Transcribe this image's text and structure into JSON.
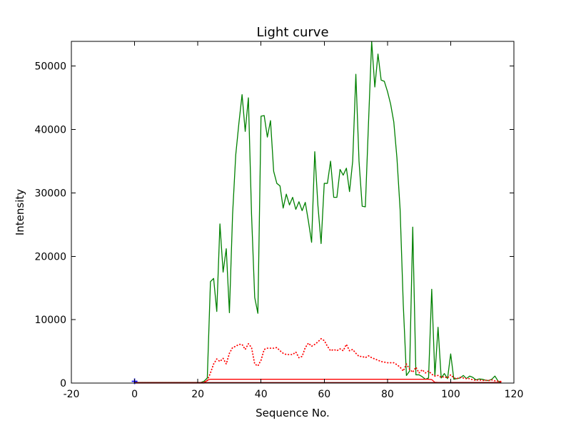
{
  "chart_data": {
    "type": "line",
    "title": "Light curve",
    "xlabel": "Sequence No.",
    "ylabel": "Intensity",
    "xlim": [
      -20,
      120
    ],
    "ylim": [
      0,
      53900
    ],
    "x_ticks": [
      -20,
      0,
      20,
      40,
      60,
      80,
      100,
      120
    ],
    "y_ticks": [
      0,
      10000,
      20000,
      30000,
      40000,
      50000
    ],
    "grid": false,
    "legend": "none",
    "series": [
      {
        "name": "intensity-main-green",
        "color": "#008000",
        "style": "solid",
        "x_start": 0,
        "x_step": 1,
        "values": [
          100,
          100,
          100,
          100,
          100,
          100,
          100,
          100,
          100,
          100,
          100,
          100,
          100,
          100,
          100,
          100,
          100,
          100,
          100,
          100,
          100,
          100,
          300,
          800,
          16000,
          16500,
          11300,
          25100,
          17500,
          21200,
          11100,
          26600,
          36000,
          41000,
          45500,
          39700,
          45000,
          26600,
          13500,
          11000,
          42100,
          42200,
          38800,
          41400,
          33400,
          31500,
          31100,
          27600,
          29800,
          28100,
          29300,
          27400,
          28600,
          27200,
          28500,
          25500,
          22200,
          36500,
          28000,
          22000,
          31500,
          31500,
          35000,
          29300,
          29300,
          33700,
          32800,
          33900,
          30200,
          35000,
          48700,
          35000,
          27900,
          27800,
          41000,
          53900,
          46700,
          51900,
          47800,
          47600,
          46000,
          44000,
          41200,
          35500,
          27400,
          12400,
          1200,
          1900,
          24600,
          1300,
          1300,
          1000,
          600,
          800,
          14800,
          1100,
          8800,
          800,
          1500,
          700,
          4600,
          600,
          700,
          800,
          1200,
          700,
          1100,
          900,
          500,
          650,
          600,
          450,
          400,
          600,
          1100,
          300,
          200
        ]
      },
      {
        "name": "intensity-background-red-dotted",
        "color": "#ff0000",
        "style": "dotted",
        "x_start": 0,
        "x_step": 1,
        "values": [
          50,
          50,
          50,
          50,
          50,
          50,
          50,
          50,
          50,
          50,
          50,
          50,
          50,
          50,
          50,
          50,
          50,
          50,
          50,
          50,
          50,
          50,
          150,
          400,
          1600,
          3000,
          3800,
          3400,
          3900,
          3000,
          4700,
          5600,
          5800,
          6100,
          6100,
          5300,
          6200,
          5600,
          3000,
          2700,
          3600,
          5300,
          5500,
          5500,
          5500,
          5600,
          5100,
          4700,
          4500,
          4500,
          4500,
          4900,
          4000,
          4200,
          5600,
          6300,
          5800,
          6100,
          6500,
          7000,
          6700,
          5800,
          5100,
          5300,
          5100,
          5400,
          5100,
          6100,
          5100,
          5300,
          4700,
          4200,
          4200,
          4000,
          4300,
          4000,
          3800,
          3600,
          3400,
          3300,
          3200,
          3200,
          3200,
          2900,
          2500,
          1900,
          3000,
          2200,
          1700,
          2500,
          1600,
          2100,
          1600,
          1900,
          1400,
          1100,
          1200,
          900,
          1000,
          800,
          1300,
          800,
          700,
          900,
          800,
          700,
          700,
          500,
          450,
          500,
          400,
          450,
          400,
          500,
          350,
          300,
          250
        ]
      },
      {
        "name": "flag-level-red-solid",
        "color": "#ff0000",
        "style": "solid",
        "x_start": 0,
        "x_step": 1,
        "values": [
          0,
          0,
          0,
          0,
          0,
          0,
          0,
          0,
          0,
          0,
          0,
          0,
          0,
          0,
          0,
          0,
          0,
          0,
          0,
          0,
          0,
          0,
          0,
          450,
          600,
          600,
          600,
          600,
          600,
          600,
          600,
          600,
          600,
          600,
          600,
          600,
          600,
          600,
          600,
          600,
          600,
          600,
          600,
          600,
          600,
          600,
          600,
          600,
          600,
          600,
          600,
          600,
          600,
          600,
          600,
          600,
          600,
          600,
          600,
          600,
          600,
          600,
          600,
          600,
          600,
          600,
          600,
          600,
          600,
          600,
          600,
          600,
          600,
          600,
          600,
          600,
          600,
          600,
          600,
          600,
          600,
          600,
          600,
          600,
          600,
          600,
          600,
          600,
          600,
          600,
          600,
          600,
          600,
          600,
          550,
          120,
          100,
          100,
          100,
          100,
          100,
          100,
          100,
          100,
          100,
          100,
          100,
          100,
          100,
          100,
          100,
          100,
          100,
          100,
          100,
          100,
          100
        ]
      },
      {
        "name": "baseline-dark-red",
        "color": "#8b0000",
        "style": "solid",
        "x_start": 0,
        "x_end": 116,
        "constant": 60
      },
      {
        "name": "start-marker-blue",
        "color": "#0000ff",
        "marker": "plus",
        "points": [
          [
            0,
            280
          ]
        ]
      }
    ]
  }
}
